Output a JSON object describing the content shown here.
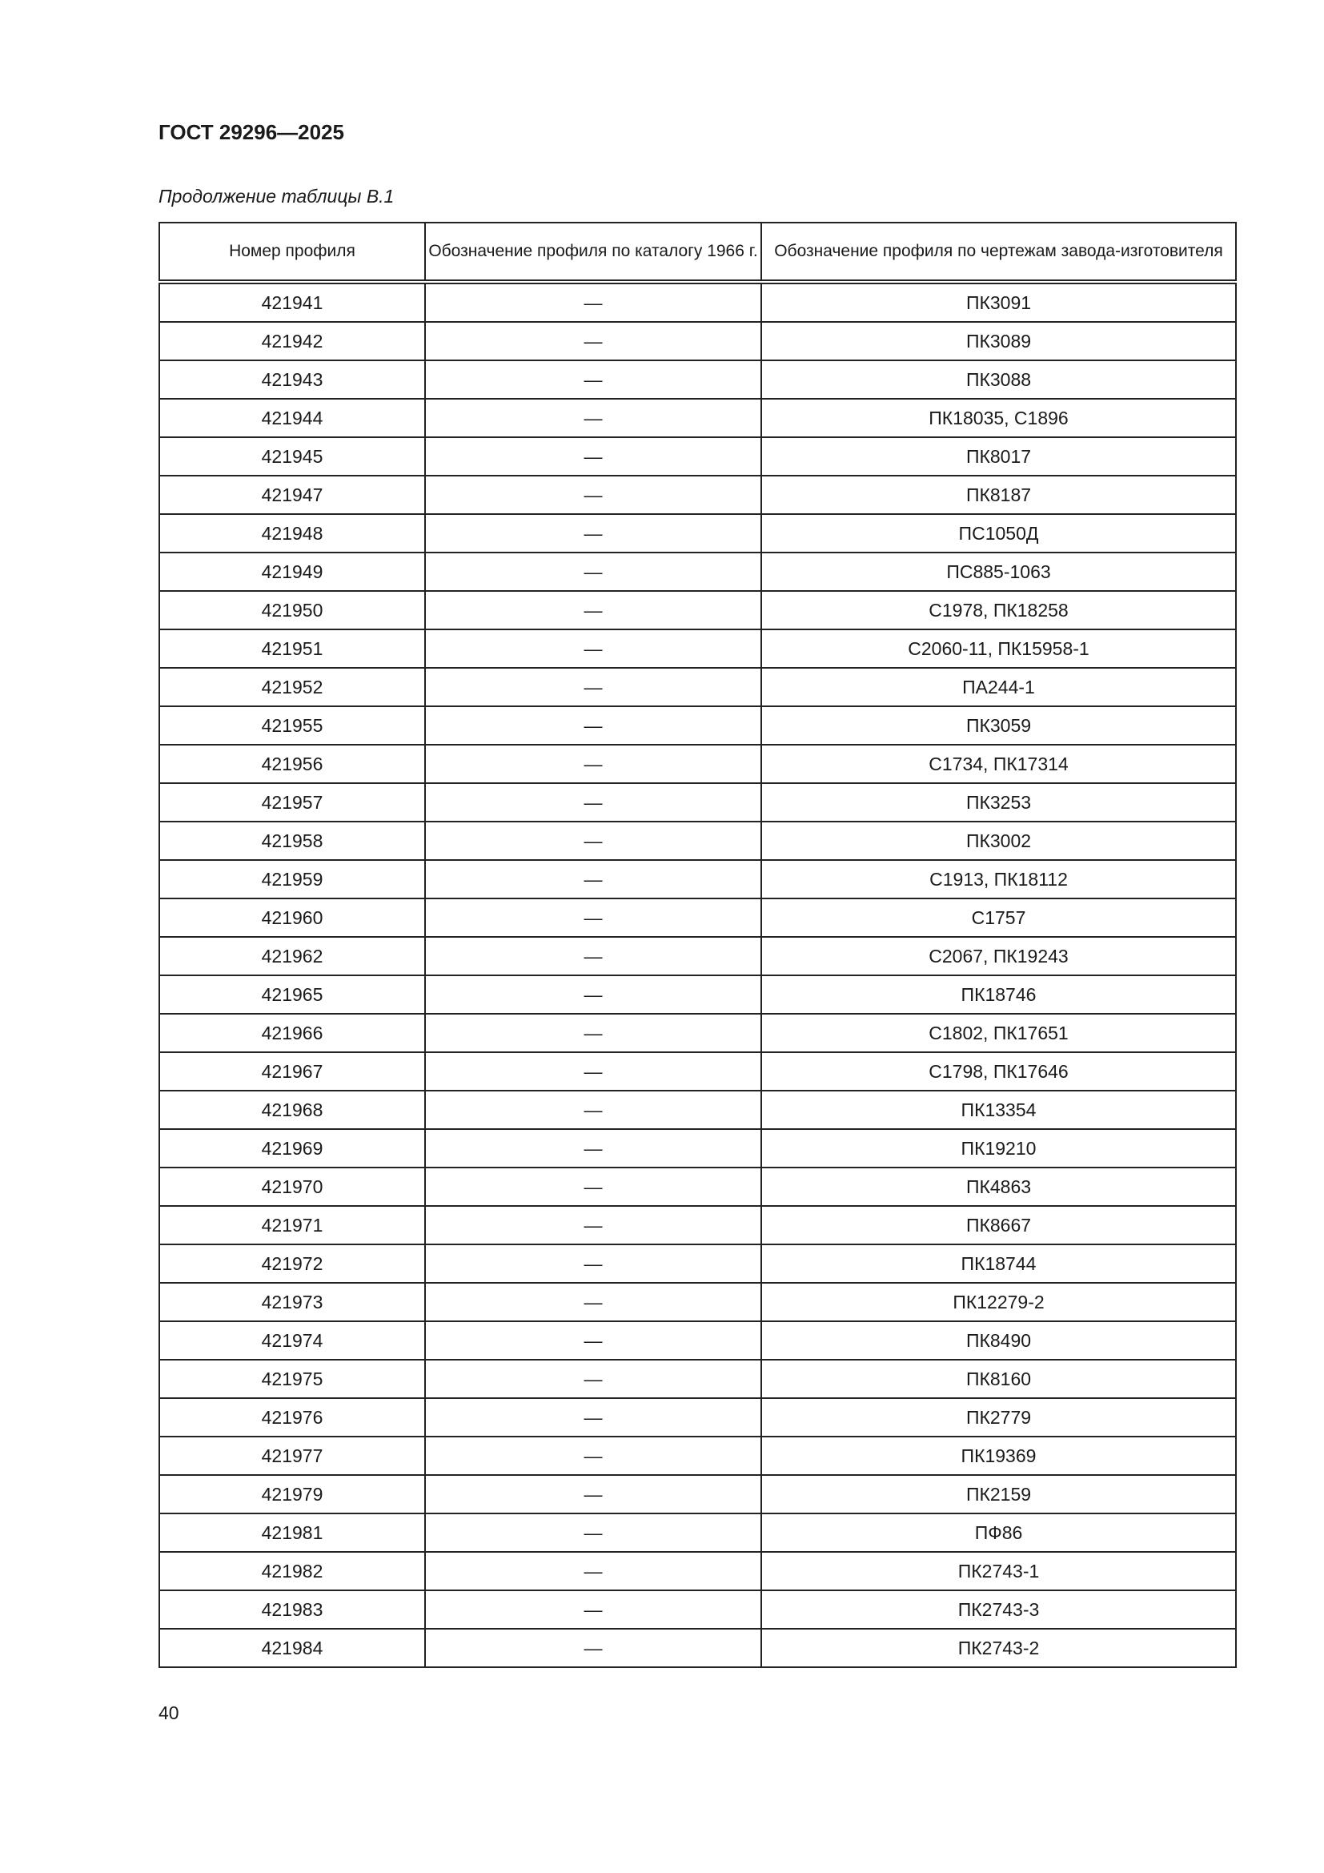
{
  "header": {
    "doc_title": "ГОСТ 29296—2025",
    "caption": "Продолжение таблицы В.1"
  },
  "table": {
    "columns": [
      "Номер профиля",
      "Обозначение профиля по каталогу 1966 г.",
      "Обозначение профиля по чертежам завода-изготовителя"
    ],
    "rows": [
      [
        "421941",
        "—",
        "ПК3091"
      ],
      [
        "421942",
        "—",
        "ПК3089"
      ],
      [
        "421943",
        "—",
        "ПК3088"
      ],
      [
        "421944",
        "—",
        "ПК18035, С1896"
      ],
      [
        "421945",
        "—",
        "ПК8017"
      ],
      [
        "421947",
        "—",
        "ПК8187"
      ],
      [
        "421948",
        "—",
        "ПС1050Д"
      ],
      [
        "421949",
        "—",
        "ПС885-1063"
      ],
      [
        "421950",
        "—",
        "С1978, ПК18258"
      ],
      [
        "421951",
        "—",
        "С2060-11, ПК15958-1"
      ],
      [
        "421952",
        "—",
        "ПА244-1"
      ],
      [
        "421955",
        "—",
        "ПК3059"
      ],
      [
        "421956",
        "—",
        "С1734, ПК17314"
      ],
      [
        "421957",
        "—",
        "ПК3253"
      ],
      [
        "421958",
        "—",
        "ПК3002"
      ],
      [
        "421959",
        "—",
        "С1913, ПК18112"
      ],
      [
        "421960",
        "—",
        "С1757"
      ],
      [
        "421962",
        "—",
        "С2067, ПК19243"
      ],
      [
        "421965",
        "—",
        "ПК18746"
      ],
      [
        "421966",
        "—",
        "С1802, ПК17651"
      ],
      [
        "421967",
        "—",
        "С1798, ПК17646"
      ],
      [
        "421968",
        "—",
        "ПК13354"
      ],
      [
        "421969",
        "—",
        "ПК19210"
      ],
      [
        "421970",
        "—",
        "ПК4863"
      ],
      [
        "421971",
        "—",
        "ПК8667"
      ],
      [
        "421972",
        "—",
        "ПК18744"
      ],
      [
        "421973",
        "—",
        "ПК12279-2"
      ],
      [
        "421974",
        "—",
        "ПК8490"
      ],
      [
        "421975",
        "—",
        "ПК8160"
      ],
      [
        "421976",
        "—",
        "ПК2779"
      ],
      [
        "421977",
        "—",
        "ПК19369"
      ],
      [
        "421979",
        "—",
        "ПК2159"
      ],
      [
        "421981",
        "—",
        "ПФ86"
      ],
      [
        "421982",
        "—",
        "ПК2743-1"
      ],
      [
        "421983",
        "—",
        "ПК2743-3"
      ],
      [
        "421984",
        "—",
        "ПК2743-2"
      ]
    ]
  },
  "footer": {
    "page_number": "40"
  }
}
